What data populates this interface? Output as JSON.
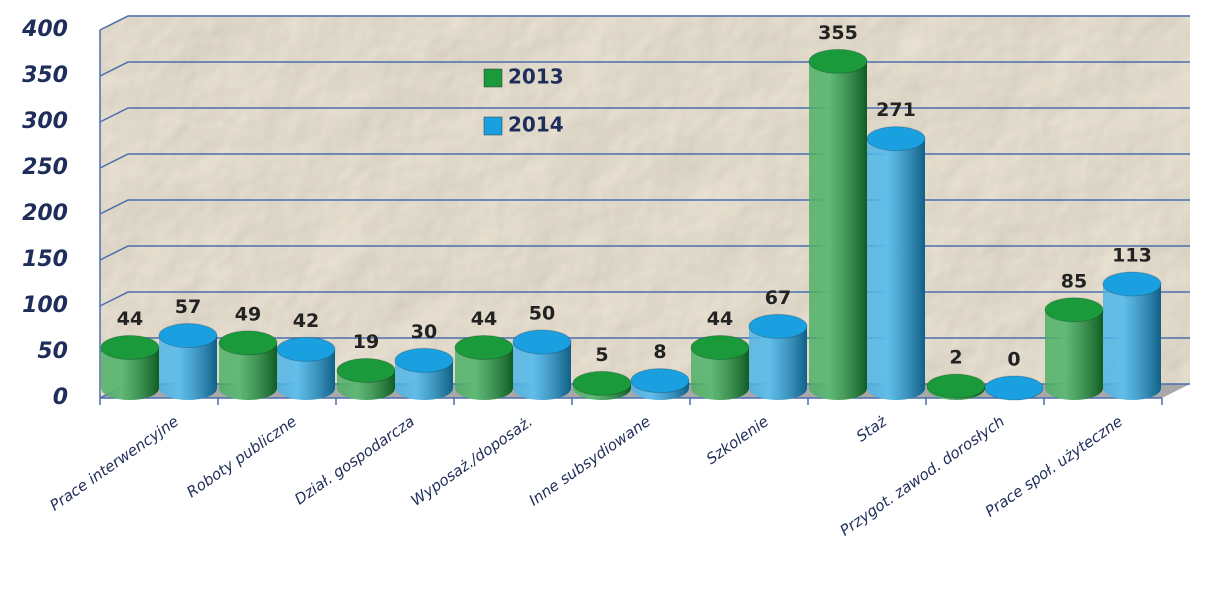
{
  "chart_data": {
    "type": "bar3d",
    "categories": [
      "Prace interwencyjne",
      "Roboty publiczne",
      "Dział. gospodarcza",
      "Wyposaż./doposaż.",
      "Inne subsydiowane",
      "Szkolenie",
      "Staż",
      "Przygot. zawod. dorosłych",
      "Prace społ. użyteczne"
    ],
    "series": [
      {
        "name": "2013",
        "color": "#1a9a3a",
        "values": [
          44,
          49,
          19,
          44,
          5,
          44,
          355,
          2,
          85
        ]
      },
      {
        "name": "2014",
        "color": "#1aa0e0",
        "values": [
          57,
          42,
          30,
          50,
          8,
          67,
          271,
          0,
          113
        ]
      }
    ],
    "ylim": [
      0,
      400
    ],
    "yticks": [
      0,
      50,
      100,
      150,
      200,
      250,
      300,
      350,
      400
    ],
    "grid": true
  }
}
